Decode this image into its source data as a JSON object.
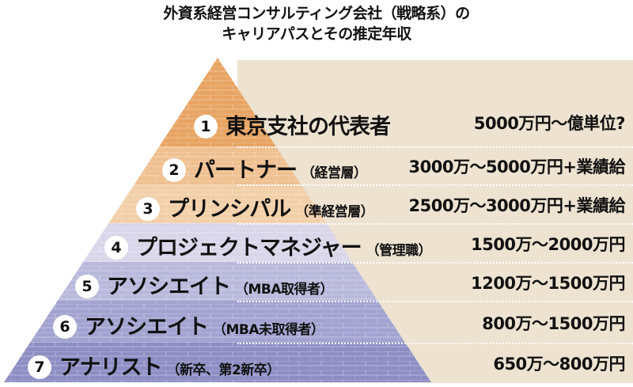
{
  "title": {
    "line1": "外資系経営コンサルティング会社（戦略系）の",
    "line2": "キャリアパスとその推定年収"
  },
  "tiers": [
    {
      "num": "1",
      "role": "東京支社の代表者",
      "level": "",
      "salary": "5000万円～億単位?",
      "color": "#e8a463"
    },
    {
      "num": "2",
      "role": "パートナー",
      "level": "（経営層）",
      "salary": "3000万～5000万円+業績給",
      "color": "#efc090"
    },
    {
      "num": "3",
      "role": "プリンシパル",
      "level": "（準経営層）",
      "salary": "2500万～3000万円+業績給",
      "color": "#f2cfa8"
    },
    {
      "num": "4",
      "role": "プロジェクトマネジャー",
      "level": "（管理職）",
      "salary": "1500万～2000万円",
      "color": "#d9d6ea"
    },
    {
      "num": "5",
      "role": "アソシエイト",
      "level": "（MBA取得者）",
      "salary": "1200万～1500万円",
      "color": "#b9b9dc"
    },
    {
      "num": "6",
      "role": "アソシエイト",
      "level": "（MBA未取得者）",
      "salary": "800万～1500万円",
      "color": "#a3a3d1"
    },
    {
      "num": "7",
      "role": "アナリスト",
      "level": "（新卒、第2新卒）",
      "salary": "650万～800万円",
      "color": "#8e8ec5"
    }
  ]
}
